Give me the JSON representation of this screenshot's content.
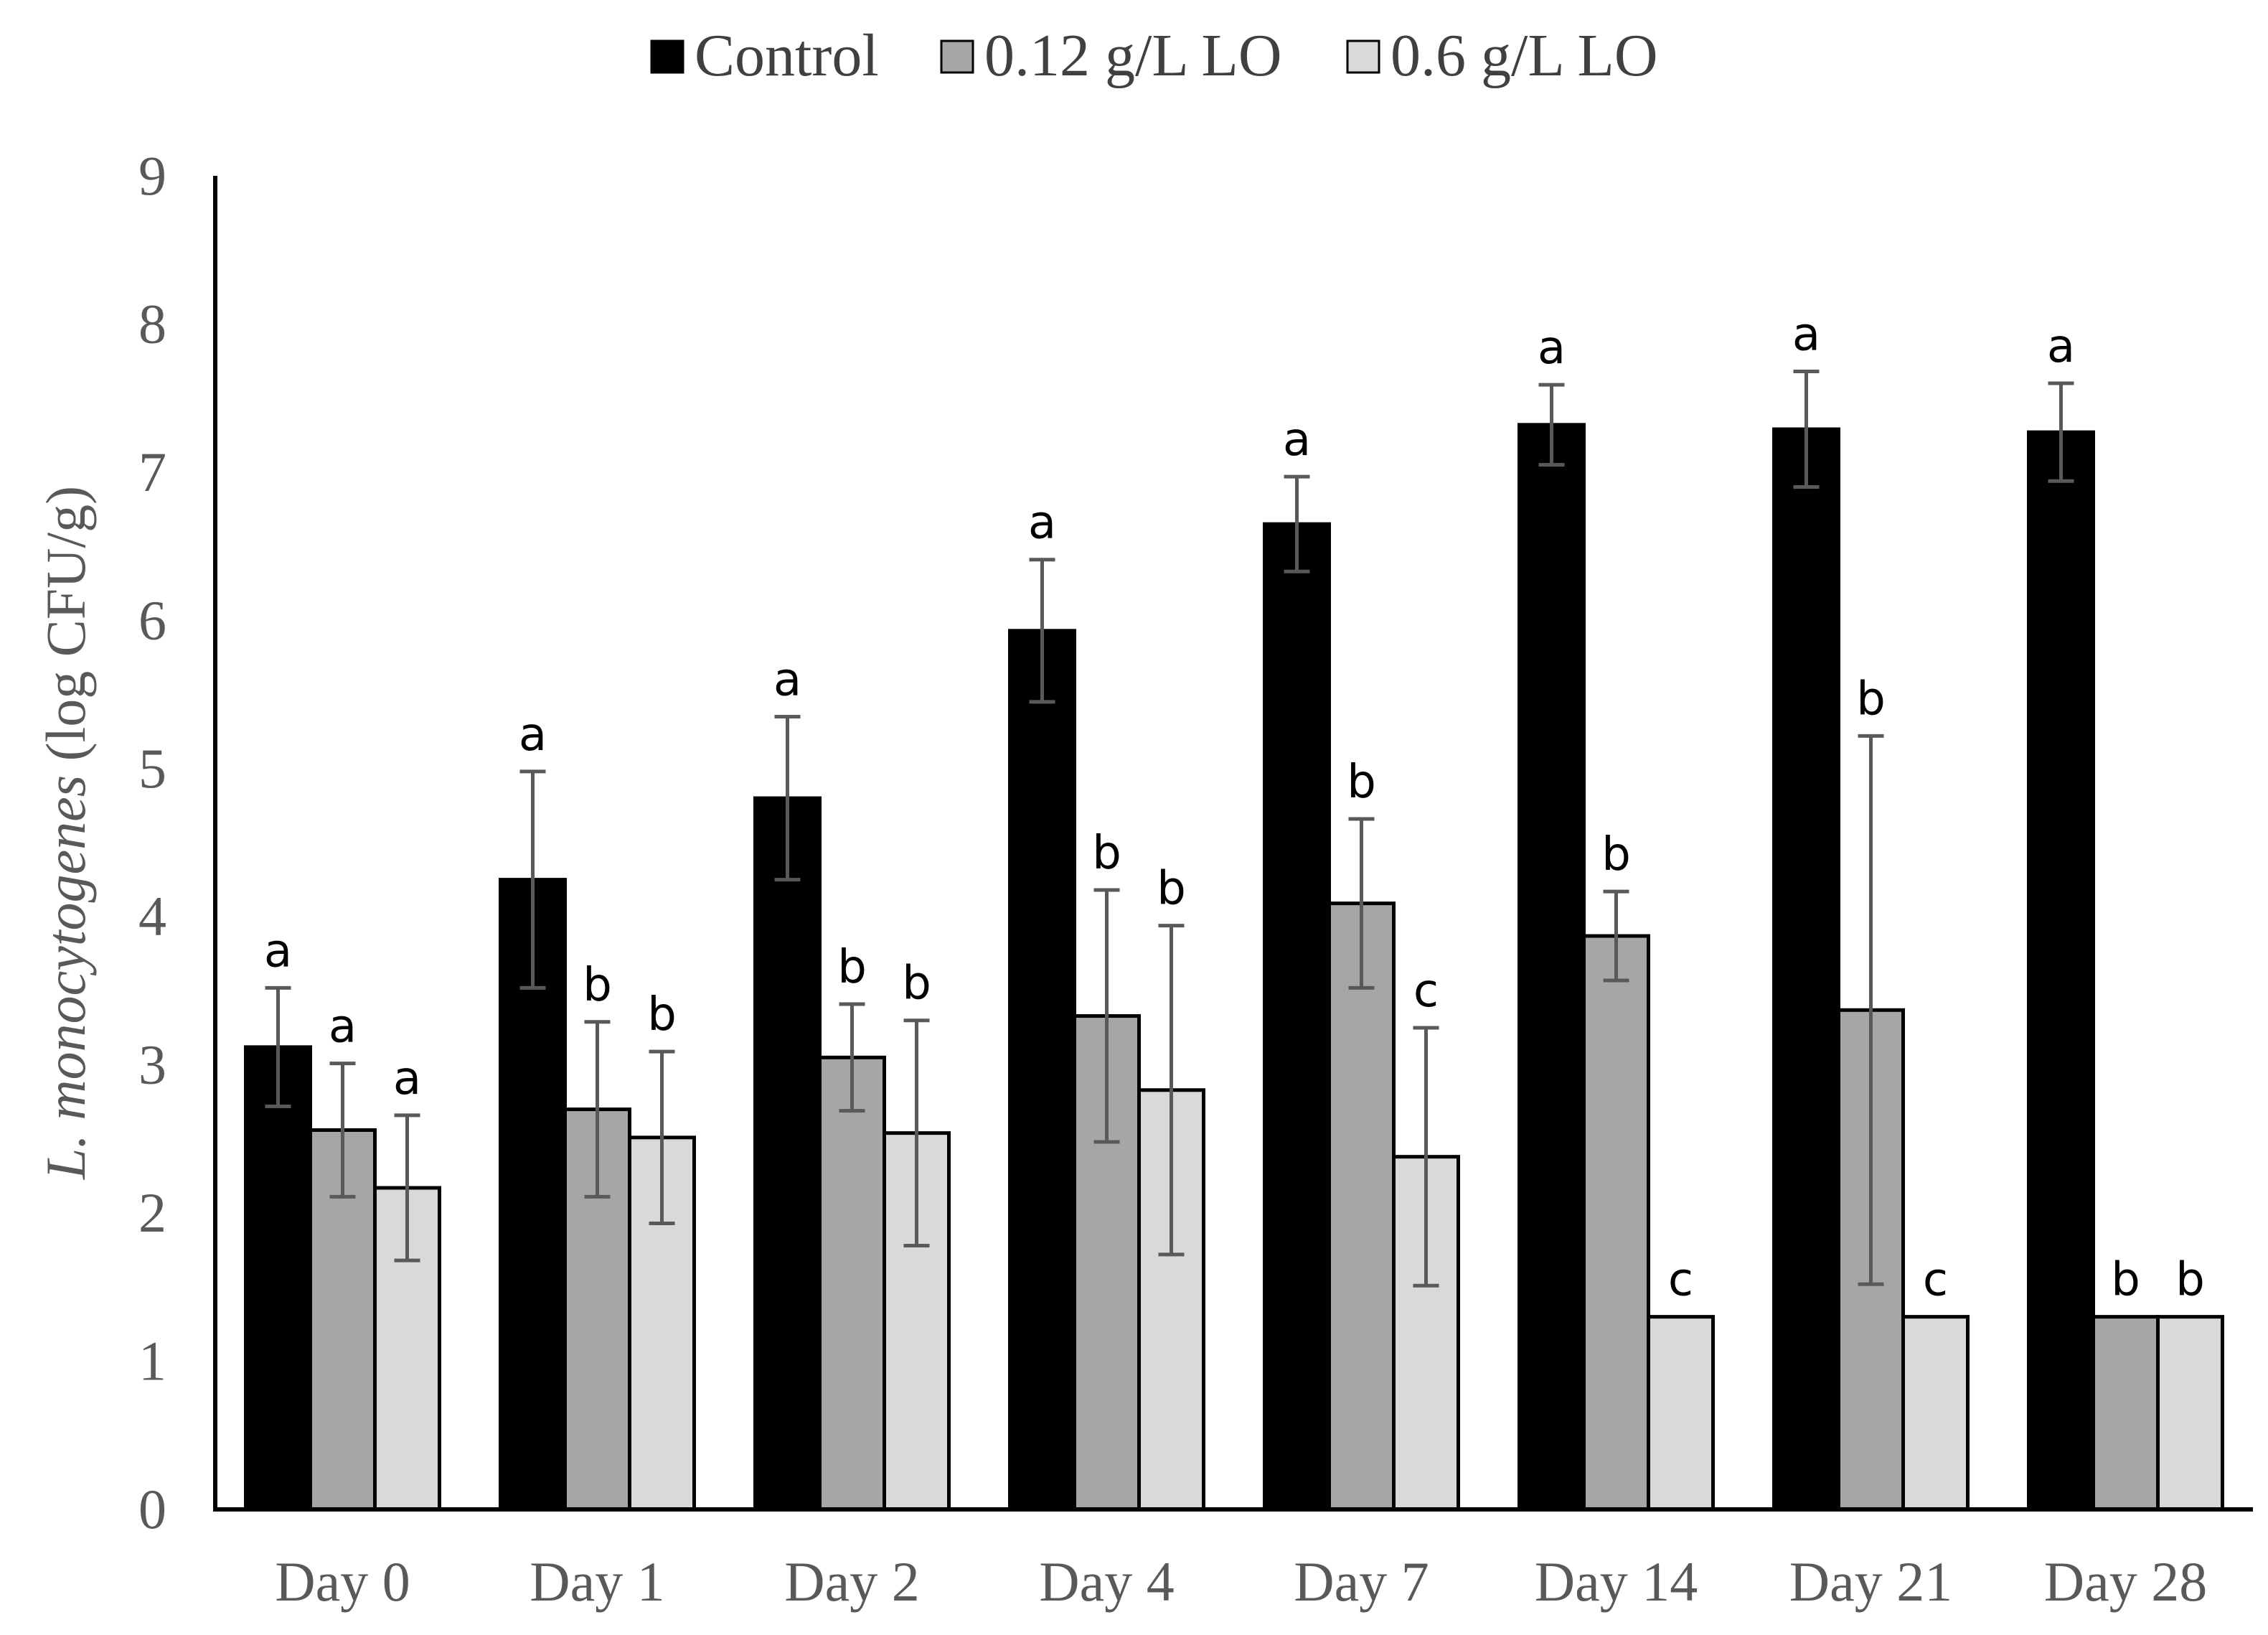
{
  "chart_data": {
    "type": "bar",
    "title": "",
    "ylabel_italic": "L. monocytogenes",
    "ylabel_rest": " (log CFU/g)",
    "ylim": [
      0,
      9
    ],
    "yticks": [
      0,
      1,
      2,
      3,
      4,
      5,
      6,
      7,
      8,
      9
    ],
    "grid": false,
    "legend_position": "top-center",
    "categories": [
      "Day 0",
      "Day 1",
      "Day 2",
      "Day 4",
      "Day 7",
      "Day 14",
      "Day 21",
      "Day 28"
    ],
    "series": [
      {
        "name": "Control",
        "color": "#000000",
        "values": [
          3.12,
          4.25,
          4.8,
          5.93,
          6.65,
          7.32,
          7.29,
          7.27
        ],
        "errors": [
          0.4,
          0.73,
          0.55,
          0.48,
          0.32,
          0.27,
          0.39,
          0.33
        ],
        "letters": [
          "a",
          "a",
          "a",
          "a",
          "a",
          "a",
          "a",
          "a"
        ]
      },
      {
        "name": "0.12 g/L LO",
        "color": "#a6a6a6",
        "values": [
          2.56,
          2.7,
          3.05,
          3.33,
          4.09,
          3.87,
          3.37,
          1.3
        ],
        "errors": [
          0.45,
          0.59,
          0.36,
          0.85,
          0.57,
          0.3,
          1.85,
          0.0
        ],
        "letters": [
          "a",
          "b",
          "b",
          "b",
          "b",
          "b",
          "b",
          "b"
        ]
      },
      {
        "name": "0.6 g/L LO",
        "color": "#d9d9d9",
        "values": [
          2.17,
          2.51,
          2.54,
          2.83,
          2.38,
          1.3,
          1.3,
          1.3
        ],
        "errors": [
          0.49,
          0.58,
          0.76,
          1.11,
          0.87,
          0.0,
          0.0,
          0.0
        ],
        "letters": [
          "a",
          "b",
          "b",
          "b",
          "c",
          "c",
          "c",
          "b"
        ]
      }
    ]
  }
}
